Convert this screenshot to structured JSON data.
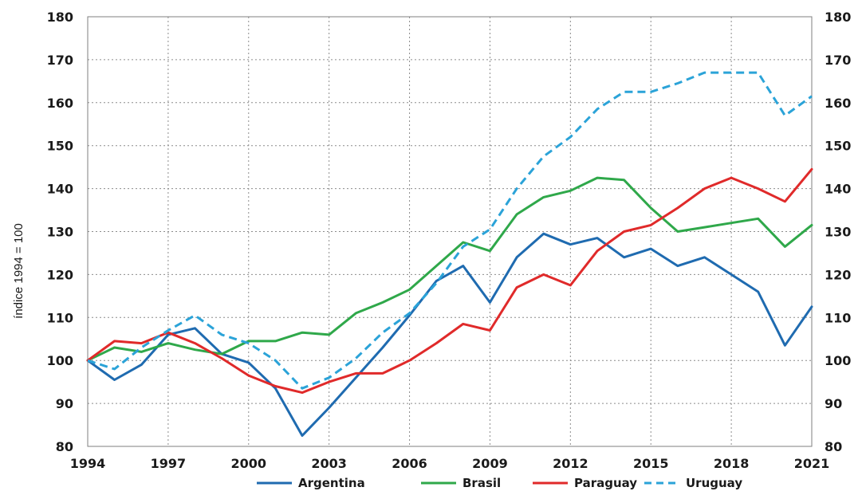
{
  "chart_data": {
    "type": "line",
    "title": "",
    "ylabel": "índice 1994 = 100",
    "xlabel": "",
    "x": [
      1994,
      1995,
      1996,
      1997,
      1998,
      1999,
      2000,
      2001,
      2002,
      2003,
      2004,
      2005,
      2006,
      2007,
      2008,
      2009,
      2010,
      2011,
      2012,
      2013,
      2014,
      2015,
      2016,
      2017,
      2018,
      2019,
      2020,
      2021
    ],
    "x_ticks": [
      "1994",
      "1997",
      "2000",
      "2003",
      "2006",
      "2009",
      "2012",
      "2015",
      "2018",
      "2021"
    ],
    "xlim": [
      1994,
      2021
    ],
    "ylim": [
      80,
      180
    ],
    "y_ticks": [
      "80",
      "90",
      "100",
      "110",
      "120",
      "130",
      "140",
      "150",
      "160",
      "170",
      "180"
    ],
    "y_ticks_right": [
      "80",
      "90",
      "100",
      "110",
      "120",
      "130",
      "140",
      "150",
      "160",
      "170",
      "180"
    ],
    "grid": true,
    "legend_position": "bottom",
    "series": [
      {
        "name": "Argentina",
        "color": "#1f6bb0",
        "style": "solid",
        "values": [
          100,
          95.5,
          99,
          106,
          107.5,
          101.5,
          99.5,
          93.5,
          82.5,
          89,
          96,
          103,
          110.5,
          118.5,
          122,
          113.5,
          124,
          129.5,
          127,
          128.5,
          124,
          126,
          122,
          124,
          120,
          116,
          103.5,
          112.5
        ]
      },
      {
        "name": "Brasil",
        "color": "#2fa84a",
        "style": "solid",
        "values": [
          100,
          103,
          102,
          104,
          102.5,
          101.5,
          104.5,
          104.5,
          106.5,
          106,
          111,
          113.5,
          116.5,
          122,
          127.5,
          125.5,
          134,
          138,
          139.5,
          142.5,
          142,
          135.5,
          130,
          131,
          132,
          133,
          126.5,
          131.5
        ]
      },
      {
        "name": "Paraguay",
        "color": "#e02a2a",
        "style": "solid",
        "values": [
          100,
          104.5,
          104,
          106.5,
          104,
          100.5,
          96.5,
          94,
          92.5,
          95,
          97,
          97,
          100,
          104,
          108.5,
          107,
          117,
          120,
          117.5,
          125.5,
          130,
          131.5,
          135.5,
          140,
          142.5,
          140,
          137,
          144.5
        ]
      },
      {
        "name": "Uruguay",
        "color": "#2ba3d8",
        "style": "dashed",
        "values": [
          100,
          98,
          103,
          107,
          110.5,
          106,
          104,
          100,
          93.5,
          96,
          100.5,
          106.5,
          111,
          118,
          126.5,
          130.5,
          140,
          147.5,
          152,
          158.5,
          162.5,
          162.5,
          164.5,
          167,
          167,
          167,
          157,
          161.5
        ]
      }
    ]
  }
}
